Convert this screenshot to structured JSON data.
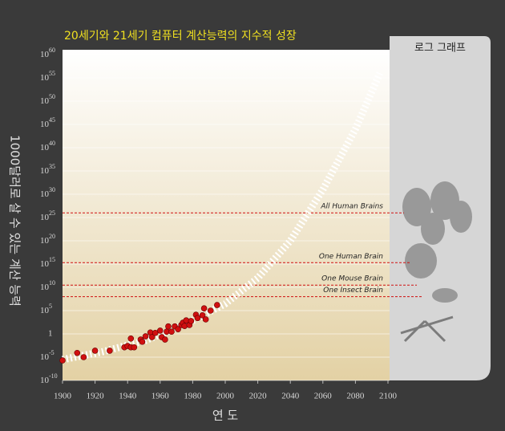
{
  "chart_data": {
    "type": "scatter",
    "title": "20세기와 21세기 컴퓨터 계산능력의 지수적 성장",
    "x_label": "연 도",
    "y_label": "1000달러로 살 수 있는 계산 능력",
    "panel_title": "로그 그래프",
    "ylog": true,
    "grid": true,
    "xlim": [
      1900,
      2100
    ],
    "xticks": [
      1900,
      1920,
      1940,
      1960,
      1980,
      2000,
      2020,
      2040,
      2060,
      2080,
      2100
    ],
    "ylim": [
      1e-10,
      1e+60
    ],
    "yticks": [
      {
        "value": 1e-10,
        "label": "10-10"
      },
      {
        "value": 1e-05,
        "label": "10-5"
      },
      1,
      {
        "value": 100000.0,
        "label": "105"
      },
      {
        "value": 10000000000.0,
        "label": "1010"
      },
      {
        "value": 1000000000000000.0,
        "label": "1015"
      },
      {
        "value": 1e+20,
        "label": "1020"
      },
      {
        "value": 1e+25,
        "label": "1025"
      },
      {
        "value": 1e+30,
        "label": "1030"
      },
      {
        "value": 1e+35,
        "label": "1035"
      },
      {
        "value": 1e+40,
        "label": "1040"
      },
      {
        "value": 1e+45,
        "label": "1045"
      },
      {
        "value": 1e+50,
        "label": "1050"
      },
      {
        "value": 1e+55,
        "label": "1055"
      },
      {
        "value": 1e+60,
        "label": "1060"
      }
    ],
    "series": [
      {
        "color": "#d01010",
        "x": [
          1900,
          1909,
          1913,
          1920,
          1929,
          1938,
          1940,
          1942,
          1942,
          1944,
          1948,
          1949,
          1951,
          1954,
          1955,
          1957,
          1960,
          1961,
          1963,
          1964,
          1965,
          1967,
          1969,
          1971,
          1973,
          1974,
          1975,
          1976,
          1978,
          1979,
          1982,
          1983,
          1986,
          1987,
          1988,
          1991,
          1995
        ],
        "values": [
          2e-06,
          8e-05,
          1e-05,
          0.00025,
          0.00025,
          0.0013,
          0.0025,
          0.1,
          0.0013,
          0.0013,
          0.06,
          0.02,
          0.3,
          2,
          0.2,
          1.6,
          5,
          0.2,
          0.06,
          3,
          40,
          3,
          40,
          10,
          80,
          250,
          50,
          800,
          80,
          600,
          13000,
          2500,
          10000,
          300000,
          1300,
          100000,
          1600000
        ]
      },
      {
        "color": "#ffffff",
        "line_style": "dashed",
        "x": [
          1900,
          1925,
          1950,
          1975,
          2000,
          2020,
          2040,
          2060,
          2080,
          2095
        ],
        "values": [
          3e-06,
          0.00016,
          0.03,
          100,
          3000000.0,
          1000000000000.0,
          1e+20,
          1e+31,
          1e+44,
          1e+56
        ]
      }
    ],
    "reference_lines": [
      {
        "label": "All Human Brains",
        "value": 1e+26
      },
      {
        "label": "One Human Brain",
        "value": 2000000000000000.0
      },
      {
        "label": "One Mouse Brain",
        "value": 30000000000.0
      },
      {
        "label": "One Insect Brain",
        "value": 100000000.0
      }
    ]
  }
}
